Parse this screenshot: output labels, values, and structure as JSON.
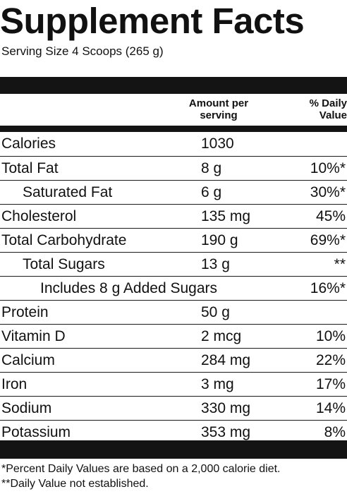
{
  "header": {
    "title": "Supplement Facts",
    "serving": "Serving Size 4 Scoops (265 g)"
  },
  "columns": {
    "amount": "Amount per serving",
    "daily_value": "% Daily Value"
  },
  "rows": [
    {
      "name": "Calories",
      "amount": "1030",
      "dv": ""
    },
    {
      "name": "Total Fat",
      "amount": "8 g",
      "dv": "10%*"
    },
    {
      "name": "Saturated Fat",
      "amount": "6 g",
      "dv": "30%*"
    },
    {
      "name": "Cholesterol",
      "amount": "135 mg",
      "dv": "45%"
    },
    {
      "name": "Total Carbohydrate",
      "amount": "190 g",
      "dv": "69%*"
    },
    {
      "name": "Total Sugars",
      "amount": "13 g",
      "dv": "**"
    },
    {
      "name": "Includes 8 g Added Sugars",
      "amount": "",
      "dv": "16%*"
    },
    {
      "name": "Protein",
      "amount": "50 g",
      "dv": ""
    },
    {
      "name": "Vitamin D",
      "amount": "2 mcg",
      "dv": "10%"
    },
    {
      "name": "Calcium",
      "amount": "284 mg",
      "dv": "22%"
    },
    {
      "name": "Iron",
      "amount": "3 mg",
      "dv": "17%"
    },
    {
      "name": "Sodium",
      "amount": "330 mg",
      "dv": "14%"
    },
    {
      "name": "Potassium",
      "amount": "353 mg",
      "dv": "8%"
    }
  ],
  "footnotes": {
    "percent_note": "*Percent Daily Values are based on a 2,000 calorie diet.",
    "not_established": "**Daily Value not established."
  }
}
